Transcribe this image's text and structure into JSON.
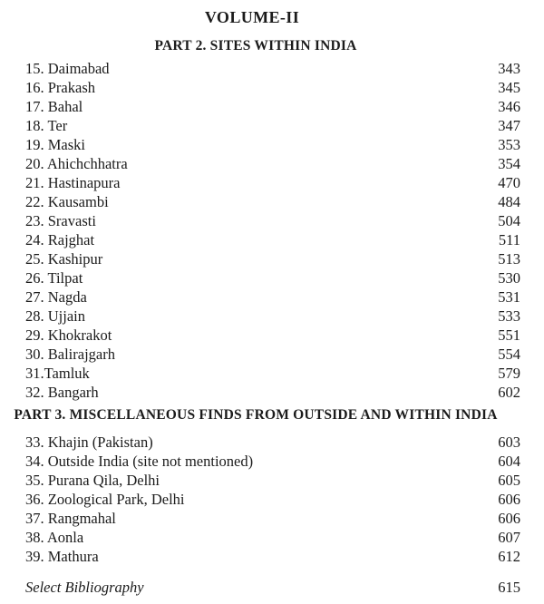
{
  "volume_title": "VOLUME-II",
  "sections": [
    {
      "heading": "PART 2. SITES WITHIN INDIA",
      "entries": [
        {
          "label": "15. Daimabad",
          "page": "343"
        },
        {
          "label": "16. Prakash",
          "page": "345"
        },
        {
          "label": "17. Bahal",
          "page": "346"
        },
        {
          "label": "18. Ter",
          "page": "347"
        },
        {
          "label": "19. Maski",
          "page": "353"
        },
        {
          "label": "20. Ahichchhatra",
          "page": "354"
        },
        {
          "label": "21. Hastinapura",
          "page": "470"
        },
        {
          "label": "22. Kausambi",
          "page": "484"
        },
        {
          "label": "23. Sravasti",
          "page": "504"
        },
        {
          "label": "24. Rajghat",
          "page": "511"
        },
        {
          "label": "25. Kashipur",
          "page": "513"
        },
        {
          "label": "26. Tilpat",
          "page": "530"
        },
        {
          "label": "27. Nagda",
          "page": "531"
        },
        {
          "label": "28. Ujjain",
          "page": "533"
        },
        {
          "label": "29. Khokrakot",
          "page": "551"
        },
        {
          "label": "30. Balirajgarh",
          "page": "554"
        },
        {
          "label": "31.Tamluk",
          "page": "579"
        },
        {
          "label": "32. Bangarh",
          "page": "602"
        }
      ]
    },
    {
      "heading": "PART 3. MISCELLANEOUS FINDS FROM OUTSIDE AND WITHIN INDIA",
      "entries": [
        {
          "label": "33. Khajin (Pakistan)",
          "page": "603"
        },
        {
          "label": "34. Outside India (site not mentioned)",
          "page": "604"
        },
        {
          "label": "35. Purana Qila, Delhi",
          "page": "605"
        },
        {
          "label": "36. Zoological Park, Delhi",
          "page": "606"
        },
        {
          "label": "37. Rangmahal",
          "page": "606"
        },
        {
          "label": "38. Aonla",
          "page": "607"
        },
        {
          "label": "39. Mathura",
          "page": "612"
        }
      ]
    }
  ],
  "footer": {
    "label": "Select Bibliography",
    "page": "615"
  },
  "colors": {
    "text": "#1b1b1b",
    "background": "#ffffff"
  }
}
